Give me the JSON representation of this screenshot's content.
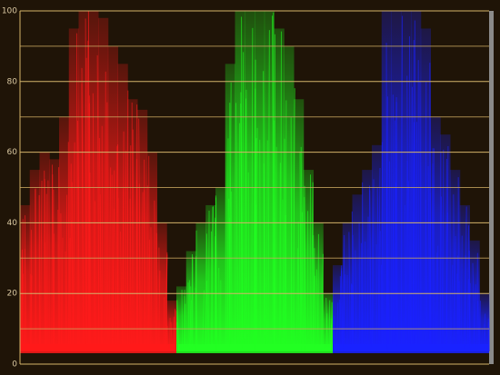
{
  "chart_data": {
    "type": "waveform",
    "ylim": [
      0,
      100
    ],
    "yticks": [
      0,
      20,
      40,
      60,
      80,
      100
    ],
    "minor_yticks": [
      10,
      30,
      50,
      70,
      90
    ],
    "grid": true,
    "series": [
      {
        "color": "#ff1a1a",
        "values": [
          45,
          55,
          60,
          58,
          70,
          95,
          100,
          100,
          98,
          90,
          85,
          75,
          72,
          60,
          40,
          18
        ]
      },
      {
        "color": "#22ff22",
        "values": [
          22,
          32,
          40,
          45,
          50,
          85,
          100,
          100,
          100,
          100,
          95,
          90,
          75,
          55,
          40,
          20
        ]
      },
      {
        "color": "#1a22ff",
        "values": [
          28,
          40,
          48,
          55,
          62,
          100,
          100,
          100,
          100,
          95,
          70,
          65,
          55,
          45,
          35,
          20
        ]
      }
    ]
  }
}
